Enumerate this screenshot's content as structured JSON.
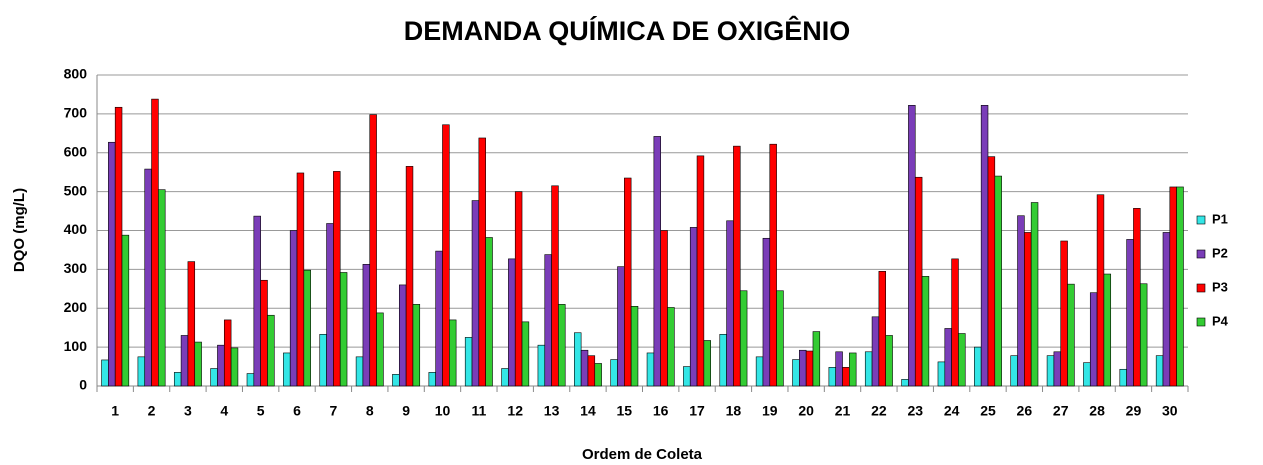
{
  "chart_data": {
    "type": "bar",
    "title": "DEMANDA QUÍMICA DE OXIGÊNIO",
    "x_label": "Ordem de Coleta",
    "y_label": "DQO (mg/L)",
    "categories": [
      "1",
      "2",
      "3",
      "4",
      "5",
      "6",
      "7",
      "8",
      "9",
      "10",
      "11",
      "12",
      "13",
      "14",
      "15",
      "16",
      "17",
      "18",
      "19",
      "20",
      "21",
      "22",
      "23",
      "24",
      "25",
      "26",
      "27",
      "28",
      "29",
      "30"
    ],
    "series": [
      {
        "name": "P1",
        "color": "#33e6e6",
        "values": [
          67,
          75,
          35,
          45,
          32,
          85,
          133,
          75,
          30,
          35,
          125,
          45,
          105,
          137,
          68,
          85,
          50,
          133,
          75,
          68,
          48,
          88,
          17,
          62,
          100,
          78,
          78,
          60,
          43,
          78
        ]
      },
      {
        "name": "P2",
        "color": "#7a3db8",
        "values": [
          627,
          558,
          130,
          105,
          437,
          400,
          418,
          313,
          260,
          347,
          477,
          327,
          338,
          92,
          307,
          642,
          408,
          425,
          380,
          92,
          88,
          178,
          722,
          148,
          722,
          438,
          88,
          240,
          377,
          395
        ]
      },
      {
        "name": "P3",
        "color": "#ff0000",
        "values": [
          717,
          738,
          320,
          170,
          272,
          548,
          552,
          698,
          565,
          672,
          638,
          500,
          515,
          78,
          535,
          400,
          592,
          617,
          622,
          90,
          48,
          295,
          537,
          327,
          590,
          395,
          373,
          492,
          457,
          512
        ]
      },
      {
        "name": "P4",
        "color": "#33cc33",
        "values": [
          388,
          505,
          113,
          98,
          182,
          298,
          292,
          188,
          210,
          170,
          382,
          165,
          210,
          58,
          205,
          202,
          117,
          245,
          245,
          140,
          85,
          130,
          282,
          135,
          540,
          472,
          262,
          288,
          263,
          512
        ]
      }
    ],
    "ylim": [
      0,
      800
    ],
    "yticks": [
      0,
      100,
      200,
      300,
      400,
      500,
      600,
      700,
      800
    ],
    "grid": true,
    "legend": "right"
  }
}
